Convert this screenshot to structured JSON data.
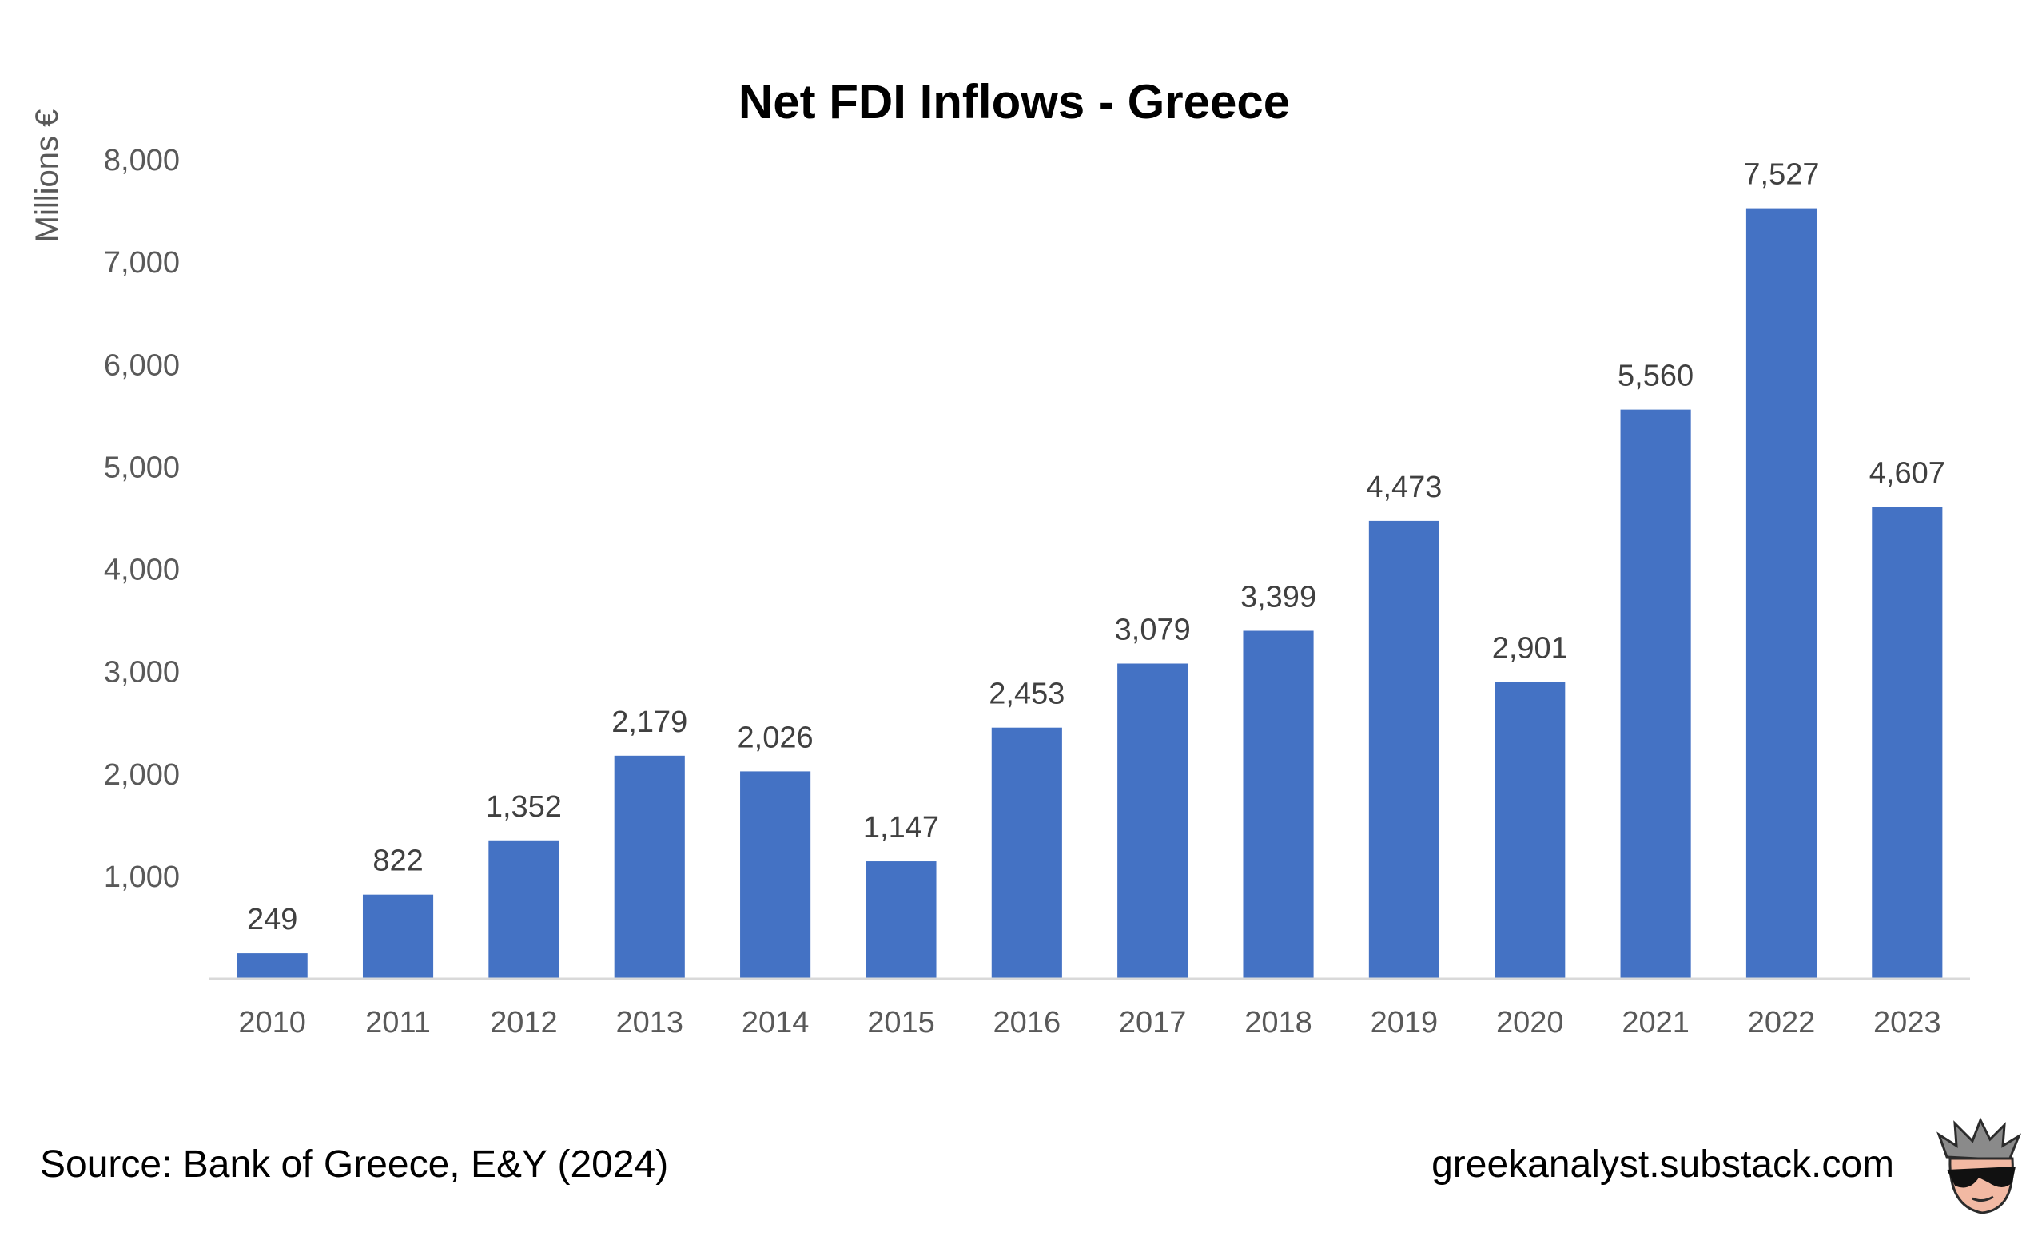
{
  "chart_data": {
    "type": "bar",
    "title": "Net FDI Inflows - Greece",
    "ylabel": "Millions €",
    "xlabel": "",
    "categories": [
      "2010",
      "2011",
      "2012",
      "2013",
      "2014",
      "2015",
      "2016",
      "2017",
      "2018",
      "2019",
      "2020",
      "2021",
      "2022",
      "2023"
    ],
    "values": [
      249,
      822,
      1352,
      2179,
      2026,
      1147,
      2453,
      3079,
      3399,
      4473,
      2901,
      5560,
      7527,
      4607
    ],
    "value_labels": [
      "249",
      "822",
      "1,352",
      "2,179",
      "2,026",
      "1,147",
      "2,453",
      "3,079",
      "3,399",
      "4,473",
      "2,901",
      "5,560",
      "7,527",
      "4,607"
    ],
    "yticks": [
      1000,
      2000,
      3000,
      4000,
      5000,
      6000,
      7000,
      8000
    ],
    "ytick_labels": [
      "1,000",
      "2,000",
      "3,000",
      "4,000",
      "5,000",
      "6,000",
      "7,000",
      "8,000"
    ],
    "ylim": [
      0,
      8000
    ],
    "grid": false,
    "legend": "none",
    "bar_color": "#4472C4"
  },
  "footer": {
    "source": "Source: Bank of Greece, E&Y (2024)",
    "site": "greekanalyst.substack.com",
    "logo_icon": "sunglasses-face-icon"
  }
}
